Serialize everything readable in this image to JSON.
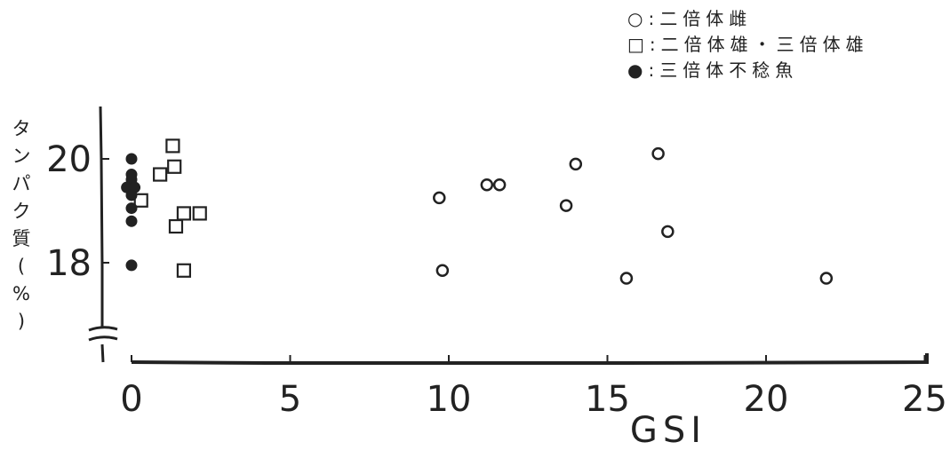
{
  "chart_data": {
    "type": "scatter",
    "xlabel": "GSI",
    "ylabel": "タンパク質(%)",
    "xlim": [
      0,
      25
    ],
    "ylim": [
      16.4,
      20.8
    ],
    "axis_break": true,
    "x_ticks": [
      "0",
      "5",
      "10",
      "15",
      "20",
      "25"
    ],
    "y_ticks": [
      "18",
      "20"
    ],
    "grid": false,
    "legend_position": "top-right",
    "series": [
      {
        "name": "○:二倍体雌",
        "marker": "open-circle",
        "points": [
          {
            "x": 9.7,
            "y": 19.25
          },
          {
            "x": 9.8,
            "y": 17.85
          },
          {
            "x": 11.2,
            "y": 19.5
          },
          {
            "x": 11.6,
            "y": 19.5
          },
          {
            "x": 13.7,
            "y": 19.1
          },
          {
            "x": 14.0,
            "y": 19.9
          },
          {
            "x": 15.6,
            "y": 17.7
          },
          {
            "x": 16.6,
            "y": 20.1
          },
          {
            "x": 16.9,
            "y": 18.6
          },
          {
            "x": 21.9,
            "y": 17.7
          }
        ]
      },
      {
        "name": "□:二倍体雄・三倍体雄",
        "marker": "open-square",
        "points": [
          {
            "x": 0.3,
            "y": 19.2
          },
          {
            "x": 0.9,
            "y": 19.7
          },
          {
            "x": 1.3,
            "y": 20.25
          },
          {
            "x": 1.35,
            "y": 19.85
          },
          {
            "x": 1.4,
            "y": 18.7
          },
          {
            "x": 1.65,
            "y": 18.95
          },
          {
            "x": 1.65,
            "y": 17.85
          },
          {
            "x": 2.15,
            "y": 18.95
          }
        ]
      },
      {
        "name": "●:三倍体不稔魚",
        "marker": "filled-circle",
        "points": [
          {
            "x": 0.0,
            "y": 20.0
          },
          {
            "x": 0.0,
            "y": 19.7
          },
          {
            "x": 0.0,
            "y": 19.6
          },
          {
            "x": -0.15,
            "y": 19.45
          },
          {
            "x": 0.1,
            "y": 19.45
          },
          {
            "x": 0.0,
            "y": 19.3
          },
          {
            "x": 0.0,
            "y": 19.05
          },
          {
            "x": 0.0,
            "y": 18.8
          },
          {
            "x": 0.0,
            "y": 17.95
          }
        ]
      }
    ]
  }
}
